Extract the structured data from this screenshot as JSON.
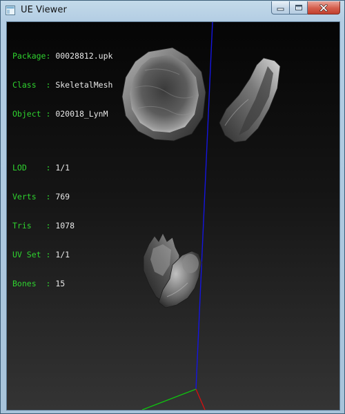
{
  "window": {
    "title": "UE Viewer",
    "buttons": {
      "minimize": "minimize-icon",
      "maximize": "maximize-icon",
      "close": "close-icon"
    }
  },
  "info": {
    "package": {
      "label": "Package",
      "sep": ": ",
      "value": "00028812.upk"
    },
    "class": {
      "label": "Class  ",
      "sep": ": ",
      "value": "SkeletalMesh"
    },
    "object": {
      "label": "Object ",
      "sep": ": ",
      "value": "020018_LynM"
    },
    "lod": {
      "label": "LOD    ",
      "sep": ": ",
      "value": "1/1"
    },
    "verts": {
      "label": "Verts  ",
      "sep": ": ",
      "value": "769"
    },
    "tris": {
      "label": "Tris   ",
      "sep": ": ",
      "value": "1078"
    },
    "uvset": {
      "label": "UV Set ",
      "sep": ": ",
      "value": "1/1"
    },
    "bones": {
      "label": "Bones  ",
      "sep": ": ",
      "value": "15"
    }
  },
  "colors": {
    "label": "#2fd32f",
    "value": "#e8e8e8",
    "axis_x": "#d01010",
    "axis_y": "#10c010",
    "axis_z": "#1515e0"
  }
}
